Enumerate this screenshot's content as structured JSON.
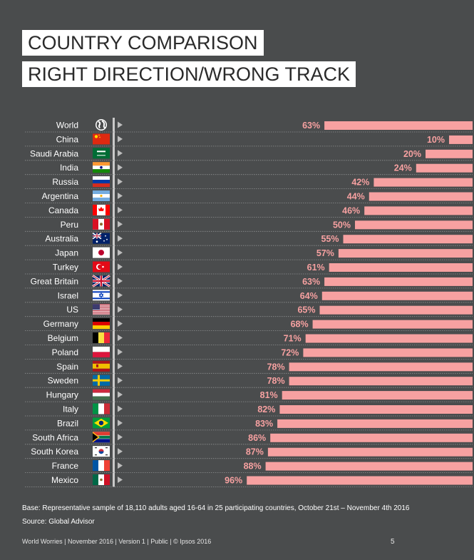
{
  "title_line1": "COUNTRY COMPARISON",
  "title_line2": "RIGHT DIRECTION/WRONG TRACK",
  "colors": {
    "background": "#4a4c4d",
    "bar": "#f7a1a1",
    "value_label": "#f7a1a1",
    "category_label": "#ffffff"
  },
  "chart_data": {
    "type": "bar",
    "orientation": "horizontal",
    "direction": "right-aligned",
    "categories": [
      "World",
      "China",
      "Saudi Arabia",
      "India",
      "Russia",
      "Argentina",
      "Canada",
      "Peru",
      "Australia",
      "Japan",
      "Turkey",
      "Great Britain",
      "Israel",
      "US",
      "Germany",
      "Belgium",
      "Poland",
      "Spain",
      "Sweden",
      "Hungary",
      "Italy",
      "Brazil",
      "South Africa",
      "South Korea",
      "France",
      "Mexico"
    ],
    "values": [
      63,
      10,
      20,
      24,
      42,
      44,
      46,
      50,
      55,
      57,
      61,
      63,
      64,
      65,
      68,
      71,
      72,
      78,
      78,
      81,
      82,
      83,
      86,
      87,
      88,
      96
    ],
    "value_labels": [
      "63%",
      "10%",
      "20%",
      "24%",
      "42%",
      "44%",
      "46%",
      "50%",
      "55%",
      "57%",
      "61%",
      "63%",
      "64%",
      "65%",
      "68%",
      "71%",
      "72%",
      "78%",
      "78%",
      "81%",
      "82%",
      "83%",
      "86%",
      "87%",
      "88%",
      "96%"
    ],
    "flag_icons": [
      "globe-icon",
      "flag-china-icon",
      "flag-saudi-arabia-icon",
      "flag-india-icon",
      "flag-russia-icon",
      "flag-argentina-icon",
      "flag-canada-icon",
      "flag-peru-icon",
      "flag-australia-icon",
      "flag-japan-icon",
      "flag-turkey-icon",
      "flag-great-britain-icon",
      "flag-israel-icon",
      "flag-us-icon",
      "flag-germany-icon",
      "flag-belgium-icon",
      "flag-poland-icon",
      "flag-spain-icon",
      "flag-sweden-icon",
      "flag-hungary-icon",
      "flag-italy-icon",
      "flag-brazil-icon",
      "flag-south-africa-icon",
      "flag-south-korea-icon",
      "flag-france-icon",
      "flag-mexico-icon"
    ],
    "xlim": [
      0,
      100
    ],
    "grid": false,
    "legend": "none"
  },
  "base_note": "Base: Representative sample of 18,110 adults aged 16-64 in 25 participating countries, October 21st – November 4th 2016",
  "source_note": "Source: Global Advisor",
  "footer": "World Worries | November 2016 |  Version 1  |  Public | © Ipsos 2016",
  "page_number": "5"
}
